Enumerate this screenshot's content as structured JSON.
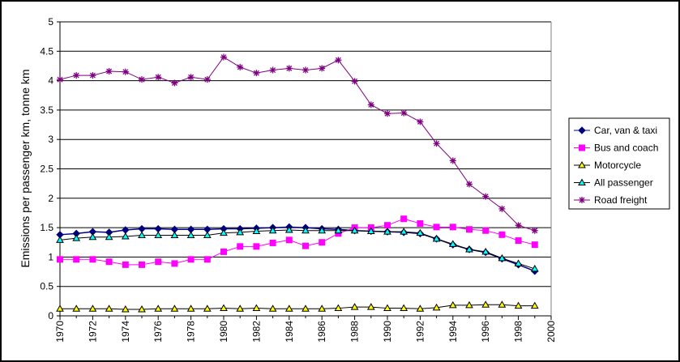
{
  "chart_data": {
    "type": "line",
    "title": "",
    "xlabel": "",
    "ylabel": "Emissions per passenger km, tonne km",
    "xlim": [
      1970,
      2000
    ],
    "ylim": [
      0,
      5
    ],
    "yticks": [
      "0",
      "0.5",
      "1",
      "1.5",
      "2",
      "2.5",
      "3",
      "3.5",
      "4",
      "4.5",
      "5"
    ],
    "xticks": [
      "1970",
      "1972",
      "1974",
      "1976",
      "1978",
      "1980",
      "1982",
      "1984",
      "1986",
      "1988",
      "1990",
      "1992",
      "1994",
      "1996",
      "1998",
      "2000"
    ],
    "grid": true,
    "legend_position": "right",
    "x": [
      1970,
      1971,
      1972,
      1973,
      1974,
      1975,
      1976,
      1977,
      1978,
      1979,
      1980,
      1981,
      1982,
      1983,
      1984,
      1985,
      1986,
      1987,
      1988,
      1989,
      1990,
      1991,
      1992,
      1993,
      1994,
      1995,
      1996,
      1997,
      1998,
      1999
    ],
    "series": [
      {
        "name": "Car, van & taxi",
        "color": "#000080",
        "marker": "diamond",
        "values": [
          1.38,
          1.4,
          1.43,
          1.42,
          1.46,
          1.48,
          1.48,
          1.47,
          1.47,
          1.47,
          1.48,
          1.48,
          1.49,
          1.5,
          1.51,
          1.5,
          1.48,
          1.47,
          1.45,
          1.44,
          1.43,
          1.42,
          1.4,
          1.31,
          1.21,
          1.13,
          1.08,
          0.97,
          0.87,
          0.76
        ]
      },
      {
        "name": "Bus and coach",
        "color": "#FF00FF",
        "marker": "square",
        "values": [
          0.96,
          0.96,
          0.96,
          0.92,
          0.87,
          0.87,
          0.92,
          0.89,
          0.96,
          0.96,
          1.09,
          1.18,
          1.18,
          1.24,
          1.29,
          1.19,
          1.25,
          1.4,
          1.5,
          1.5,
          1.54,
          1.65,
          1.57,
          1.51,
          1.51,
          1.47,
          1.45,
          1.38,
          1.28,
          1.21
        ]
      },
      {
        "name": "Motorcycle",
        "color": "#FFFF00",
        "marker": "triangle",
        "values": [
          0.12,
          0.12,
          0.12,
          0.12,
          0.11,
          0.11,
          0.12,
          0.12,
          0.12,
          0.12,
          0.13,
          0.12,
          0.13,
          0.12,
          0.12,
          0.12,
          0.12,
          0.13,
          0.15,
          0.15,
          0.13,
          0.13,
          0.12,
          0.14,
          0.18,
          0.18,
          0.19,
          0.19,
          0.17,
          0.17
        ]
      },
      {
        "name": "All passenger",
        "color": "#00FFFF",
        "marker": "triangle",
        "values": [
          1.29,
          1.32,
          1.34,
          1.34,
          1.35,
          1.37,
          1.37,
          1.37,
          1.37,
          1.37,
          1.41,
          1.42,
          1.44,
          1.45,
          1.46,
          1.45,
          1.45,
          1.45,
          1.45,
          1.44,
          1.43,
          1.43,
          1.41,
          1.31,
          1.22,
          1.13,
          1.09,
          0.98,
          0.89,
          0.8
        ]
      },
      {
        "name": "Road freight",
        "color": "#800080",
        "marker": "star",
        "values": [
          4.02,
          4.09,
          4.09,
          4.16,
          4.15,
          4.02,
          4.06,
          3.96,
          4.06,
          4.02,
          4.4,
          4.23,
          4.13,
          4.18,
          4.21,
          4.18,
          4.21,
          4.35,
          3.99,
          3.59,
          3.44,
          3.45,
          3.3,
          2.93,
          2.64,
          2.24,
          2.03,
          1.82,
          1.54,
          1.45
        ]
      }
    ]
  }
}
